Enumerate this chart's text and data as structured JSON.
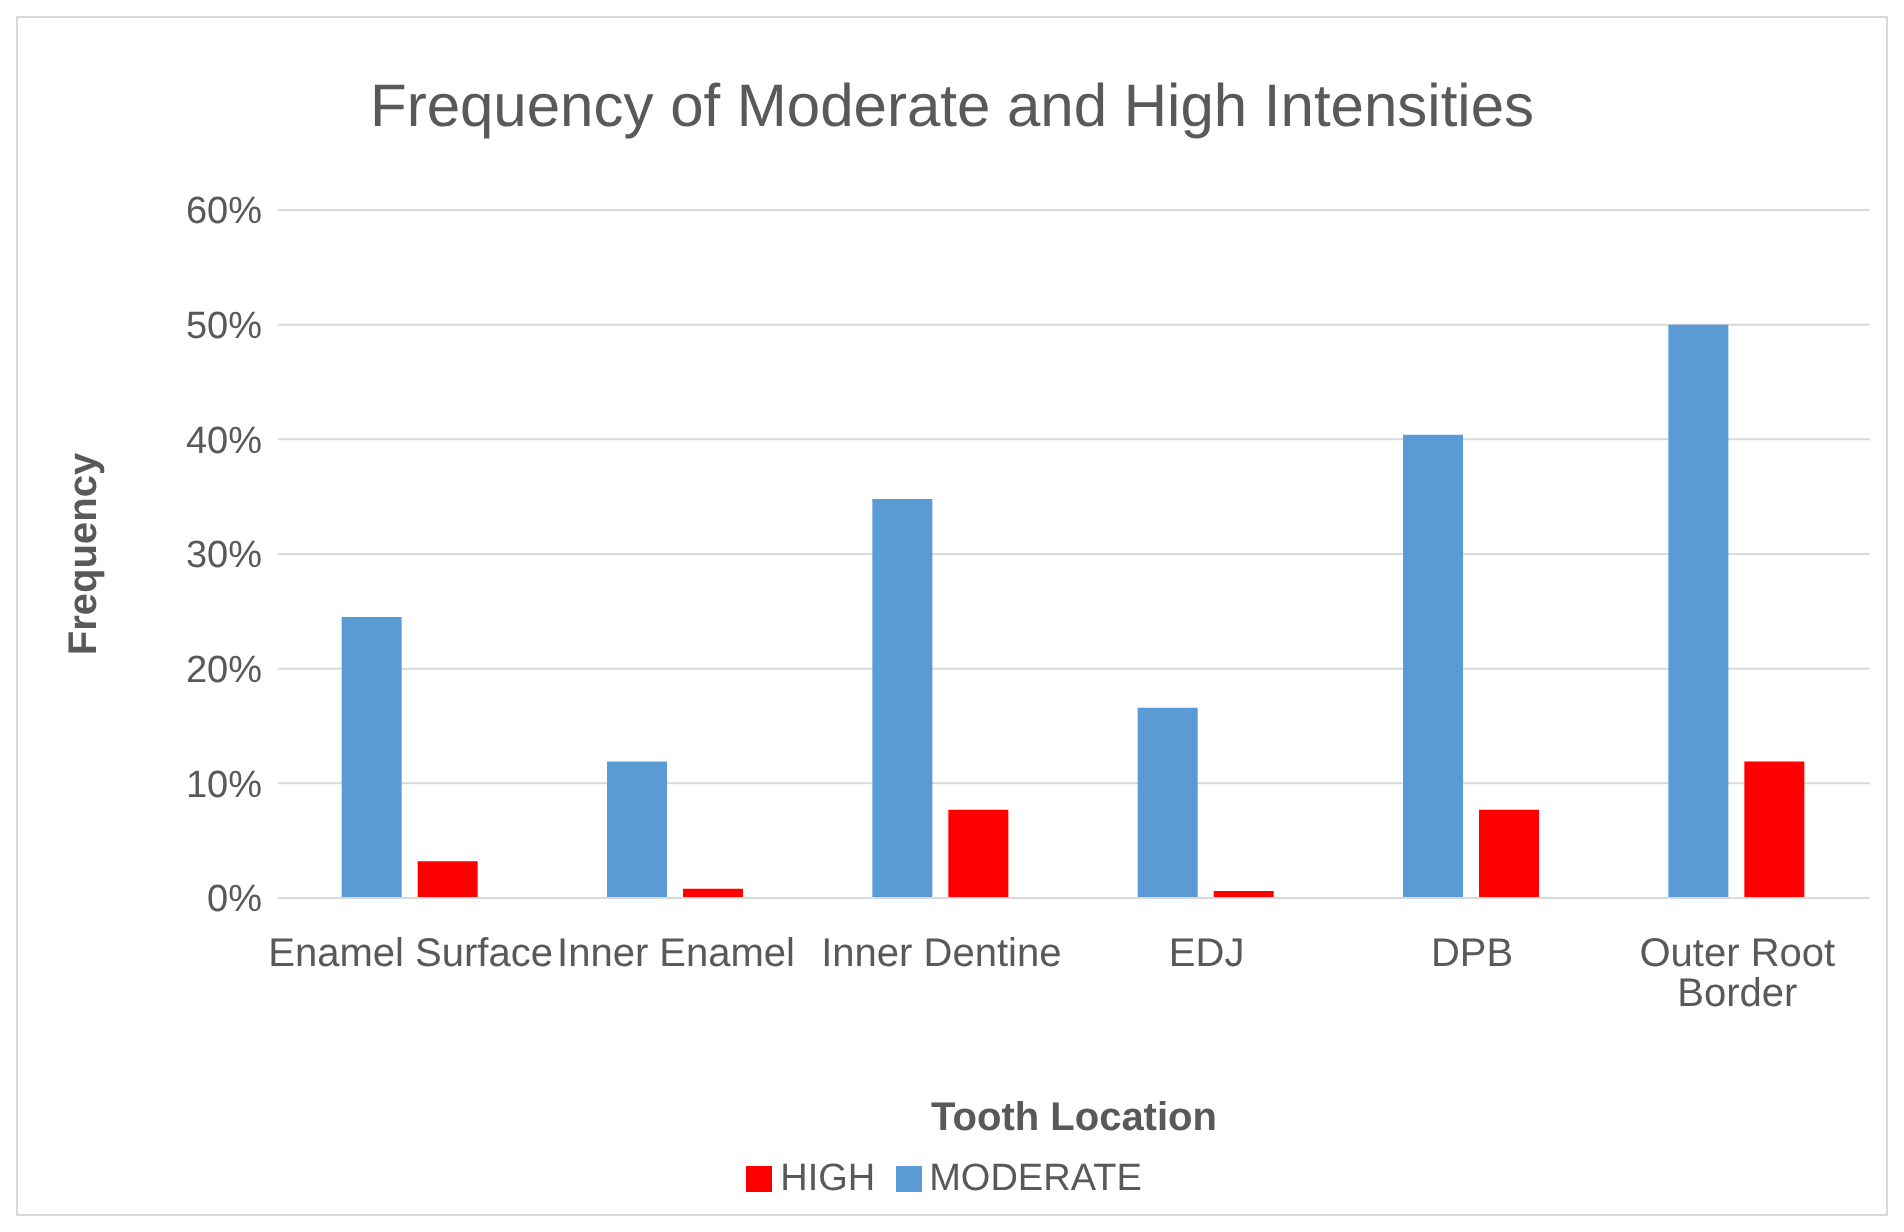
{
  "chart_data": {
    "type": "bar",
    "title": "Frequency of Moderate and High Intensities",
    "xlabel": "Tooth Location",
    "ylabel": "Frequency",
    "categories": [
      "Enamel Surface",
      "Inner Enamel",
      "Inner Dentine",
      "EDJ",
      "DPB",
      "Outer Root Border"
    ],
    "series": [
      {
        "name": "MODERATE",
        "color": "#5b9bd5",
        "values": [
          24.5,
          11.9,
          34.8,
          16.6,
          40.4,
          50
        ]
      },
      {
        "name": "HIGH",
        "color": "#ff0000",
        "values": [
          3.2,
          0.8,
          7.7,
          0.6,
          7.7,
          11.9
        ]
      }
    ],
    "ylim": [
      0,
      60
    ],
    "yticks": [
      {
        "value": 0,
        "label": "0%"
      },
      {
        "value": 10,
        "label": "10%"
      },
      {
        "value": 20,
        "label": "20%"
      },
      {
        "value": 30,
        "label": "30%"
      },
      {
        "value": 40,
        "label": "40%"
      },
      {
        "value": 50,
        "label": "50%"
      },
      {
        "value": 60,
        "label": "60%"
      }
    ],
    "grid": "y",
    "legend": "bottom"
  }
}
